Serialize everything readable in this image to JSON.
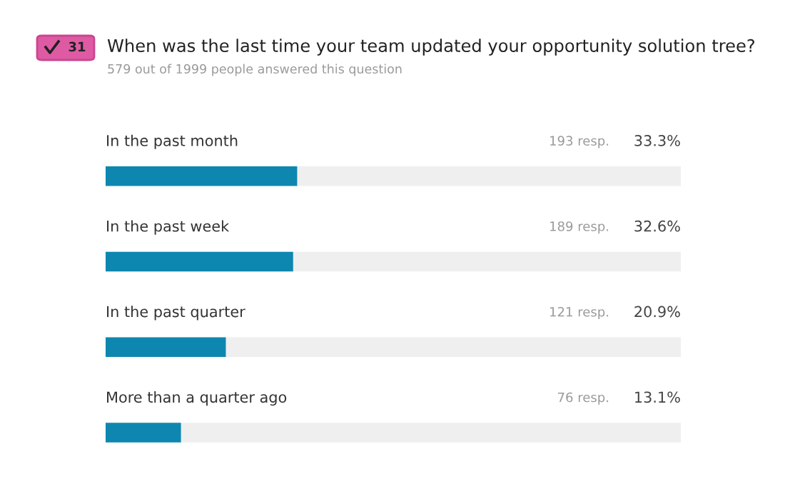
{
  "chart_data": {
    "type": "bar",
    "orientation": "horizontal",
    "title": "When was the last time your team updated your opportunity solution tree?",
    "subtitle": "579 out of 1999 people answered this question",
    "categories": [
      "In the past month",
      "In the past week",
      "In the past quarter",
      "More than a quarter ago"
    ],
    "values": [
      33.3,
      32.6,
      20.9,
      13.1
    ],
    "color": "#0e87b0",
    "value_labels": [
      "33.3%",
      "32.6%",
      "20.9%",
      "13.1%"
    ],
    "xlim": [
      0,
      100
    ],
    "tick_labels": false,
    "annotations": [
      "31",
      "193 resp.",
      "189 resp.",
      "121 resp.",
      "76 resp."
    ]
  }
}
